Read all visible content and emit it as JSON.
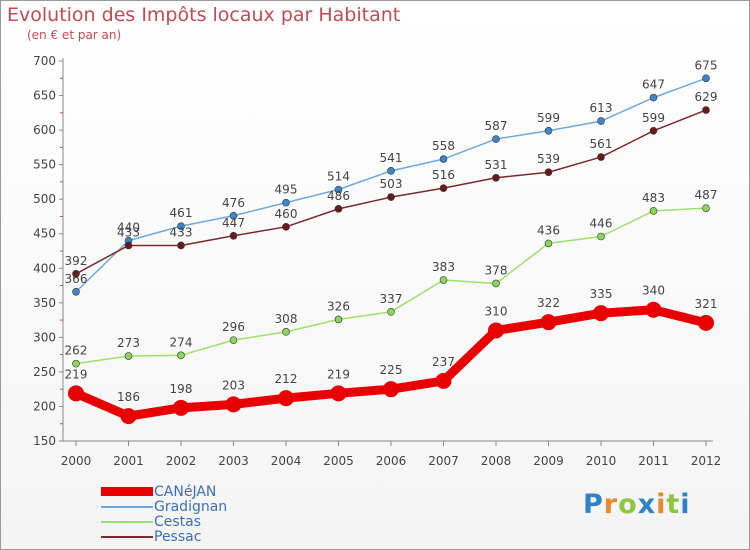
{
  "chart_data": {
    "type": "line",
    "title": "Evolution des Impôts locaux par Habitant",
    "subtitle": "(en € et par an)",
    "xlabel": "",
    "ylabel": "",
    "ylim": [
      150,
      700
    ],
    "yticks": [
      150,
      200,
      250,
      300,
      350,
      400,
      450,
      500,
      550,
      600,
      650,
      700
    ],
    "categories": [
      "2000",
      "2001",
      "2002",
      "2003",
      "2004",
      "2005",
      "2006",
      "2007",
      "2008",
      "2009",
      "2010",
      "2011",
      "2012"
    ],
    "series": [
      {
        "name": "CANéJAN",
        "color": "#e80000",
        "values": [
          219,
          186,
          198,
          203,
          212,
          219,
          225,
          237,
          310,
          322,
          335,
          340,
          321
        ]
      },
      {
        "name": "Gradignan",
        "color": "#6fa8dc",
        "values": [
          366,
          440,
          461,
          476,
          495,
          514,
          541,
          558,
          587,
          599,
          613,
          647,
          675
        ]
      },
      {
        "name": "Cestas",
        "color": "#9ee06a",
        "values": [
          262,
          273,
          274,
          296,
          308,
          326,
          337,
          383,
          378,
          436,
          446,
          483,
          487
        ]
      },
      {
        "name": "Pessac",
        "color": "#7a2a2a",
        "values": [
          392,
          433,
          433,
          447,
          460,
          486,
          503,
          516,
          531,
          539,
          561,
          599,
          629
        ]
      }
    ],
    "grid": false,
    "legend": "bottom-left"
  },
  "logo": {
    "letters": [
      "P",
      "r",
      "o",
      "x",
      "i",
      "t",
      "i"
    ],
    "colors": [
      "#2d82c8",
      "#e8892b",
      "#8dc63f",
      "#2d82c8",
      "#e8892b",
      "#8dc63f",
      "#2d82c8"
    ]
  }
}
